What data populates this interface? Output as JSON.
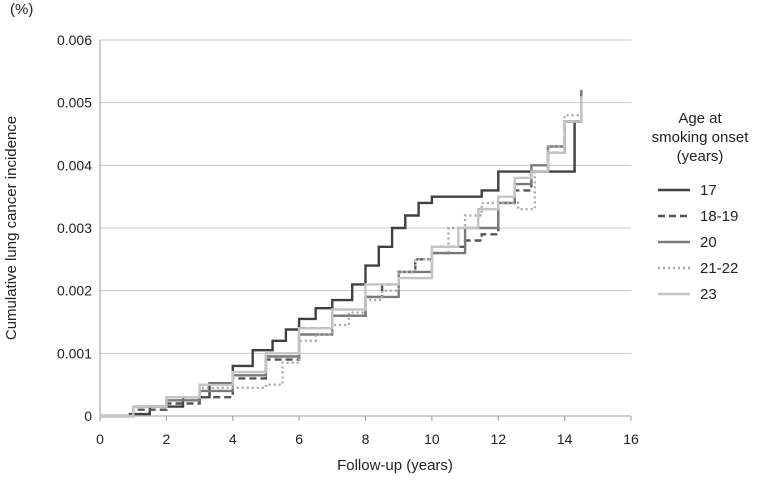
{
  "chart_data": {
    "type": "line",
    "title": "",
    "unit_label": "(%)",
    "xlabel": "Follow-up (years)",
    "ylabel": "Cumulative lung cancer incidence",
    "xlim": [
      0,
      16
    ],
    "ylim": [
      0,
      0.006
    ],
    "x_ticks": [
      "0",
      "2",
      "4",
      "6",
      "8",
      "10",
      "12",
      "14",
      "16"
    ],
    "y_ticks": [
      "0",
      "0.001",
      "0.002",
      "0.003",
      "0.004",
      "0.005",
      "0.006"
    ],
    "grid": "horizontal",
    "step": true,
    "legend": {
      "title": [
        "Age at",
        "smoking onset",
        "(years)"
      ],
      "placement": "right"
    },
    "series": [
      {
        "name": "17",
        "color": "#404040",
        "style": "solid",
        "x": [
          0,
          0.9,
          1.5,
          2.5,
          3.3,
          4.0,
          4.6,
          5.2,
          5.6,
          6.0,
          6.5,
          7.0,
          7.6,
          8.0,
          8.4,
          8.8,
          9.2,
          9.6,
          10.0,
          10.5,
          11.0,
          11.5,
          12.0,
          12.5,
          13.0,
          13.5,
          14.0,
          14.3,
          14.5
        ],
        "y": [
          0,
          3e-05,
          0.00015,
          0.0003,
          0.00052,
          0.0008,
          0.00105,
          0.0012,
          0.00138,
          0.00155,
          0.00172,
          0.00185,
          0.0021,
          0.0024,
          0.0027,
          0.003,
          0.0032,
          0.0034,
          0.0035,
          0.0035,
          0.0035,
          0.0036,
          0.0039,
          0.0039,
          0.0039,
          0.0039,
          0.0039,
          0.0047,
          0.0052
        ]
      },
      {
        "name": "18-19",
        "color": "#555555",
        "style": "dashed",
        "x": [
          0,
          1.0,
          2.0,
          3.0,
          4.0,
          5.0,
          6.0,
          7.0,
          8.0,
          8.5,
          9.0,
          9.5,
          10.0,
          10.5,
          11.0,
          11.5,
          12.0,
          12.5,
          13.0,
          13.5,
          14.0,
          14.5
        ],
        "y": [
          0,
          0.0001,
          0.0002,
          0.0003,
          0.0006,
          0.0009,
          0.0014,
          0.0016,
          0.0019,
          0.0021,
          0.0023,
          0.0025,
          0.0026,
          0.0027,
          0.0028,
          0.0029,
          0.0034,
          0.0036,
          0.0039,
          0.0042,
          0.0047,
          0.0051
        ]
      },
      {
        "name": "20",
        "color": "#7a7a7a",
        "style": "solid",
        "x": [
          0,
          1.0,
          2.0,
          3.0,
          4.0,
          5.0,
          6.0,
          7.0,
          8.0,
          9.0,
          10.0,
          11.0,
          12.0,
          12.5,
          13.0,
          13.5,
          14.0,
          14.5
        ],
        "y": [
          0,
          0.00015,
          0.00025,
          0.0004,
          0.00065,
          0.00095,
          0.0013,
          0.0016,
          0.0019,
          0.0023,
          0.0026,
          0.003,
          0.0034,
          0.0037,
          0.004,
          0.0043,
          0.0047,
          0.0052
        ]
      },
      {
        "name": "21-22",
        "color": "#aaaaaa",
        "style": "dotted",
        "x": [
          0,
          1.0,
          2.0,
          3.0,
          4.0,
          4.5,
          5.0,
          5.5,
          6.0,
          6.5,
          7.0,
          7.5,
          8.0,
          8.5,
          9.0,
          9.5,
          10.0,
          10.5,
          11.0,
          11.5,
          12.0,
          12.6,
          13.1,
          13.5,
          14.0,
          14.5
        ],
        "y": [
          0,
          0.00015,
          0.0003,
          0.00045,
          0.00045,
          0.00045,
          0.0005,
          0.00085,
          0.0012,
          0.0013,
          0.00145,
          0.00165,
          0.00185,
          0.002,
          0.0023,
          0.0025,
          0.0027,
          0.003,
          0.0032,
          0.0034,
          0.0034,
          0.0033,
          0.0039,
          0.0043,
          0.0048,
          0.0051
        ]
      },
      {
        "name": "23",
        "color": "#c4c4c4",
        "style": "solid",
        "x": [
          0,
          1.0,
          2.0,
          3.0,
          4.0,
          5.0,
          6.0,
          7.0,
          8.0,
          9.0,
          10.0,
          10.8,
          11.4,
          12.0,
          12.5,
          13.0,
          13.5,
          14.0,
          14.5
        ],
        "y": [
          0,
          0.00015,
          0.0003,
          0.0005,
          0.0007,
          0.001,
          0.0014,
          0.0017,
          0.0021,
          0.0022,
          0.0027,
          0.003,
          0.0033,
          0.0035,
          0.0038,
          0.0039,
          0.0042,
          0.0047,
          0.0051
        ]
      }
    ]
  }
}
